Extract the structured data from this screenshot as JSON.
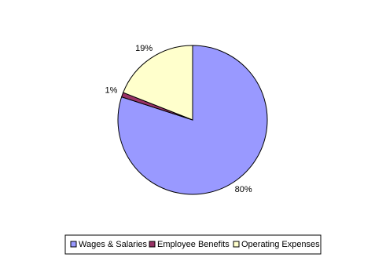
{
  "chart_data": {
    "type": "pie",
    "categories": [
      "Wages & Salaries",
      "Employee Benefits",
      "Operating Expenses"
    ],
    "values": [
      80,
      1,
      19
    ],
    "value_labels": [
      "80%",
      "1%",
      "19%"
    ],
    "colors": [
      "#9999ff",
      "#993366",
      "#ffffcc"
    ]
  }
}
